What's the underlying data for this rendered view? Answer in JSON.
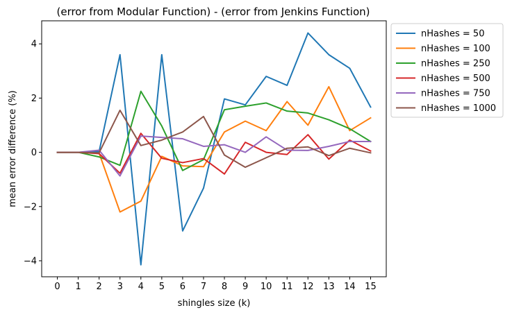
{
  "chart_data": {
    "type": "line",
    "title": "(error from Modular Function) - (error from Jenkins Function)",
    "xlabel": "shingles size (k)",
    "ylabel": "mean error difference (%)",
    "x": [
      0,
      1,
      2,
      3,
      4,
      5,
      6,
      7,
      8,
      9,
      10,
      11,
      12,
      13,
      14,
      15
    ],
    "x_ticks": [
      "0",
      "1",
      "2",
      "3",
      "4",
      "5",
      "6",
      "7",
      "8",
      "9",
      "10",
      "11",
      "12",
      "13",
      "14",
      "15"
    ],
    "y_ticks": [
      {
        "value": -4,
        "label": "−4"
      },
      {
        "value": -2,
        "label": "−2"
      },
      {
        "value": 0,
        "label": "0"
      },
      {
        "value": 2,
        "label": "2"
      },
      {
        "value": 4,
        "label": "4"
      }
    ],
    "xlim": [
      -0.75,
      15.75
    ],
    "ylim": [
      -4.59,
      4.85
    ],
    "grid": false,
    "legend_position": "outside-right",
    "series": [
      {
        "name": "nHashes = 50",
        "color": "#1f77b4",
        "values": [
          0,
          0,
          0.03,
          3.6,
          -4.15,
          3.6,
          -2.9,
          -1.32,
          1.97,
          1.75,
          2.8,
          2.47,
          4.4,
          3.6,
          3.1,
          1.67
        ]
      },
      {
        "name": "nHashes = 100",
        "color": "#ff7f0e",
        "values": [
          0,
          0,
          -0.03,
          -2.2,
          -1.8,
          -0.15,
          -0.5,
          -0.53,
          0.75,
          1.15,
          0.8,
          1.87,
          1.0,
          2.42,
          0.8,
          1.27
        ]
      },
      {
        "name": "nHashes = 250",
        "color": "#2ca02c",
        "values": [
          0,
          0,
          -0.17,
          -0.48,
          2.25,
          0.97,
          -0.67,
          -0.27,
          1.57,
          1.7,
          1.82,
          1.52,
          1.45,
          1.2,
          0.87,
          0.4
        ]
      },
      {
        "name": "nHashes = 500",
        "color": "#d62728",
        "values": [
          0,
          0,
          -0.05,
          -0.77,
          0.7,
          -0.22,
          -0.38,
          -0.23,
          -0.8,
          0.37,
          0.0,
          -0.08,
          0.65,
          -0.25,
          0.45,
          0.05
        ]
      },
      {
        "name": "nHashes = 750",
        "color": "#9467bd",
        "values": [
          0,
          0,
          0.08,
          -0.87,
          0.6,
          0.55,
          0.5,
          0.22,
          0.28,
          0.0,
          0.57,
          0.08,
          0.07,
          0.22,
          0.4,
          0.4
        ]
      },
      {
        "name": "nHashes = 1000",
        "color": "#8c564b",
        "values": [
          0,
          0,
          -0.02,
          1.55,
          0.25,
          0.45,
          0.75,
          1.32,
          -0.1,
          -0.55,
          -0.2,
          0.15,
          0.2,
          -0.12,
          0.15,
          -0.02
        ]
      }
    ]
  }
}
